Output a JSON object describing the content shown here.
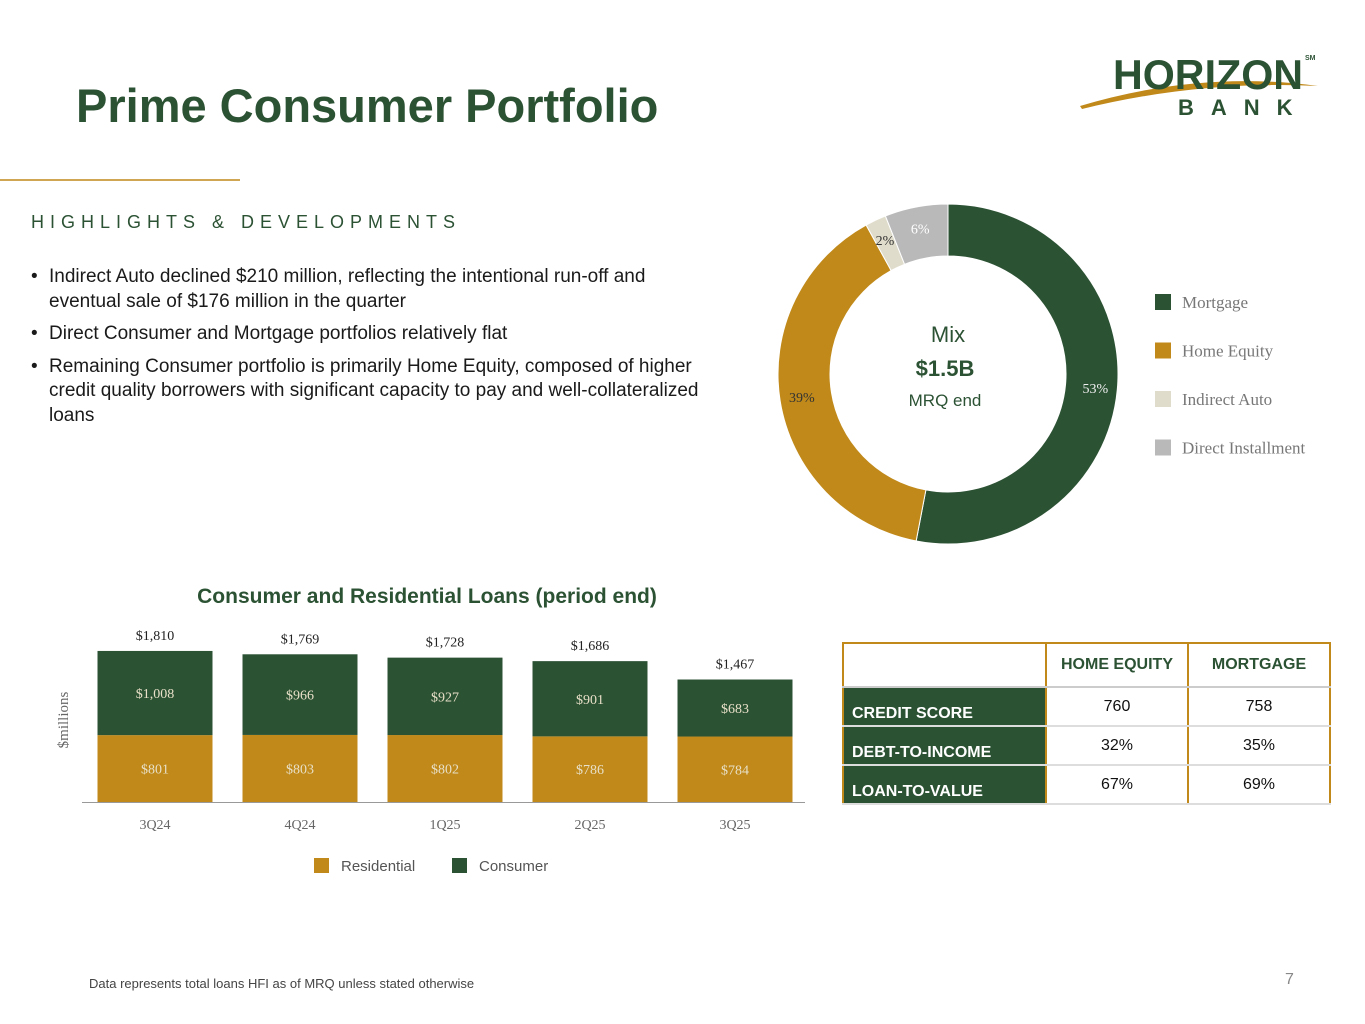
{
  "logo": {
    "name": "HORIZON",
    "sub": "BANK",
    "mark": "SM"
  },
  "header": {
    "title": "Prime Consumer Portfolio"
  },
  "highlights": {
    "heading": "HIGHLIGHTS & DEVELOPMENTS",
    "bullets": [
      "Indirect Auto declined $210 million, reflecting the intentional run-off and eventual sale of $176 million in the quarter",
      "Direct Consumer and Mortgage portfolios relatively flat",
      "Remaining Consumer portfolio is primarily Home Equity, composed of higher credit quality borrowers with significant capacity to pay and well-collateralized loans"
    ]
  },
  "chart_data": [
    {
      "type": "donut",
      "categories": [
        "Mortgage",
        "Home Equity",
        "Indirect Auto",
        "Direct Installment"
      ],
      "values": [
        53,
        39,
        2,
        6
      ],
      "value_labels": [
        "53%",
        "39%",
        "2%",
        "6%"
      ],
      "colors": [
        "#2c5234",
        "#c0891a",
        "#e0dccb",
        "#b9b9b9"
      ],
      "center_title": "Mix",
      "center_value": "$1.5B",
      "center_subtitle": "MRQ end",
      "legend": "right"
    },
    {
      "type": "stacked_bar",
      "title": "Consumer and Residential Loans (period end)",
      "y_label": "$millions",
      "categories": [
        "3Q24",
        "4Q24",
        "1Q25",
        "2Q25",
        "3Q25"
      ],
      "series": [
        {
          "name": "Residential",
          "color": "#c0891a",
          "values": [
            801,
            803,
            802,
            786,
            784
          ],
          "value_labels": [
            "$801",
            "$803",
            "$802",
            "$786",
            "$784"
          ]
        },
        {
          "name": "Consumer",
          "color": "#2c5234",
          "values": [
            1008,
            966,
            927,
            901,
            683
          ],
          "value_labels": [
            "$1,008",
            "$966",
            "$927",
            "$901",
            "$683"
          ]
        }
      ],
      "total_labels": [
        "$1,810",
        "$1,769",
        "$1,728",
        "$1,686",
        "$1,467"
      ],
      "ylim": [
        0,
        2000
      ],
      "legend": "bottom"
    }
  ],
  "table": {
    "columns": [
      "HOME EQUITY",
      "MORTGAGE"
    ],
    "rows": [
      {
        "label": "CREDIT SCORE",
        "cells": [
          "760",
          "758"
        ]
      },
      {
        "label": "DEBT-TO-INCOME",
        "cells": [
          "32%",
          "35%"
        ]
      },
      {
        "label": "LOAN-TO-VALUE",
        "cells": [
          "67%",
          "69%"
        ]
      }
    ]
  },
  "footer": {
    "note": "Data represents total loans HFI as of MRQ unless stated otherwise",
    "page": "7"
  }
}
